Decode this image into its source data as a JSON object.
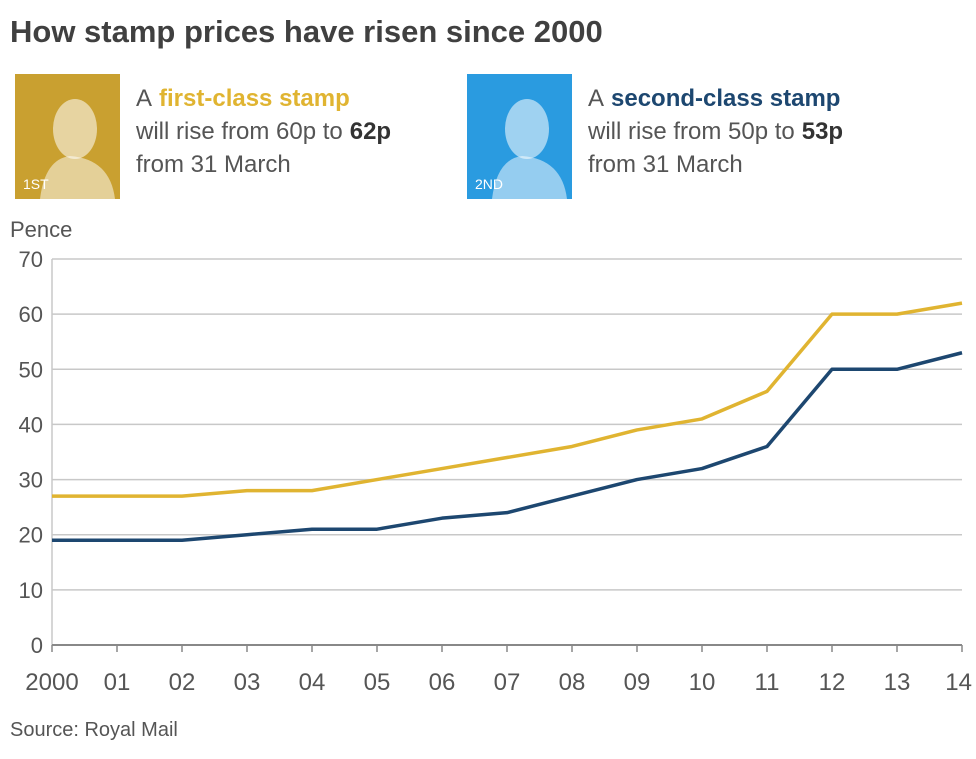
{
  "chart_data": {
    "type": "line",
    "title": "How stamp prices have risen since 2000",
    "annotations": [
      {
        "stamp_label": "1ST",
        "stamp_color": "#c9a030",
        "prefix": "A",
        "highlight": "first-class stamp",
        "rise_text": "will rise from 60p to",
        "new_price": "62p",
        "date_text": "from 31 March"
      },
      {
        "stamp_label": "2ND",
        "stamp_color": "#2a9be0",
        "prefix": "A",
        "highlight": "second-class stamp",
        "rise_text": "will rise from 50p to",
        "new_price": "53p",
        "date_text": "from 31 March"
      }
    ],
    "y_label": "Pence",
    "source": "Source: Royal Mail",
    "categories": [
      "2000",
      "01",
      "02",
      "03",
      "04",
      "05",
      "06",
      "07",
      "08",
      "09",
      "10",
      "11",
      "12",
      "13",
      "14"
    ],
    "series": [
      {
        "name": "first-class stamp",
        "color": "#e0b431",
        "values": [
          27,
          27,
          27,
          28,
          28,
          30,
          32,
          34,
          36,
          39,
          41,
          46,
          60,
          60,
          62
        ]
      },
      {
        "name": "second-class stamp",
        "color": "#1d4770",
        "values": [
          19,
          19,
          19,
          20,
          21,
          21,
          23,
          24,
          27,
          30,
          32,
          36,
          50,
          50,
          53
        ]
      }
    ],
    "ylim": [
      0,
      70
    ],
    "yticks": [
      0,
      10,
      20,
      30,
      40,
      50,
      60,
      70
    ],
    "grid": true
  }
}
